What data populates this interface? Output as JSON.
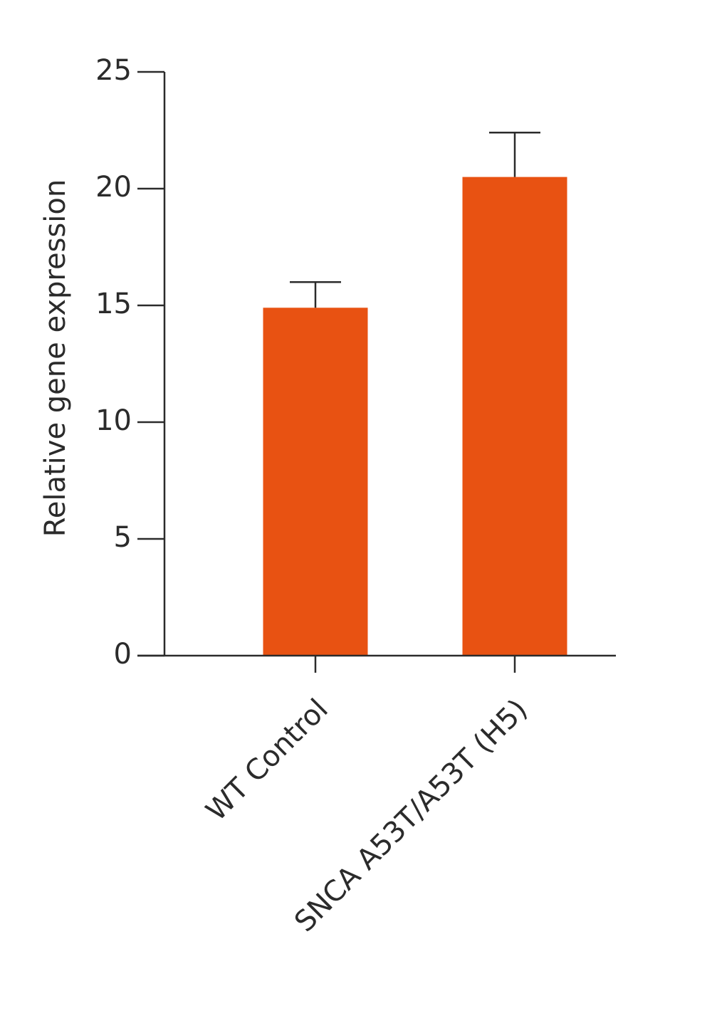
{
  "chart_data": {
    "type": "bar",
    "y_label": "Relative gene expression",
    "categories": [
      "WT Control",
      "SNCA A53T/A53T (H5)"
    ],
    "values": [
      14.9,
      20.5
    ],
    "errors": [
      1.1,
      1.9
    ],
    "color": "#e85212",
    "ylim": [
      0,
      25
    ],
    "yticks": [
      0,
      5,
      10,
      15,
      20,
      25
    ],
    "grid": false
  }
}
